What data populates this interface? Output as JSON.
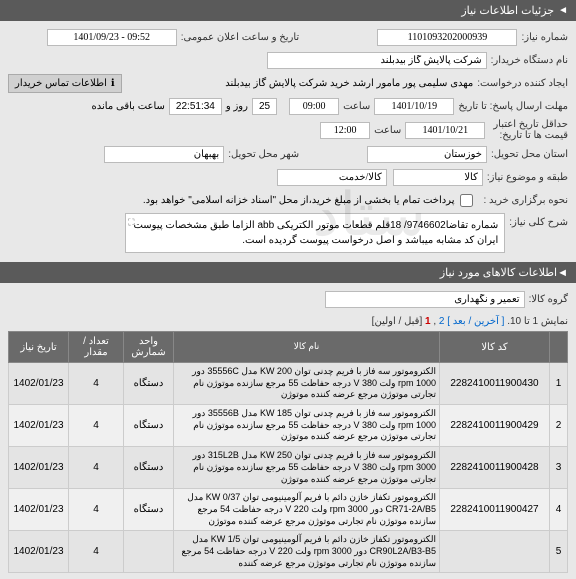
{
  "header": {
    "title": "جزئیات اطلاعات نیاز"
  },
  "form": {
    "need_number_label": "شماره نیاز:",
    "need_number": "1101093202000939",
    "announce_datetime_label": "تاریخ و ساعت اعلان عمومی:",
    "announce_datetime": "1401/09/23 - 09:52",
    "org_label": "نام دستگاه خریدار:",
    "org_value": "شرکت پالایش گاز بیدبلند",
    "requester_label": "ایجاد کننده درخواست:",
    "requester_value": "مهدی سلیمی پور مامور ارشد خرید شرکت پالایش گاز بیدبلند",
    "contact_button": "اطلاعات تماس خریدار",
    "deadline_label": "مهلت ارسال پاسخ: تا تاریخ",
    "deadline_date": "1401/10/19",
    "deadline_time_label": "ساعت",
    "deadline_time": "09:00",
    "countdown_days": "25",
    "countdown_days_label": "روز و",
    "countdown_time": "22:51:34",
    "countdown_remaining": "ساعت باقی مانده",
    "validity_min_label": "حداقل تاریخ اعتبار",
    "validity_min_sublabel": "قیمت ها تا تاریخ:",
    "validity_date": "1401/10/21",
    "validity_time_label": "ساعت",
    "validity_time": "12:00",
    "province_label": "استان محل تحویل:",
    "province_value": "خوزستان",
    "city_label": "شهر محل تحویل:",
    "city_value": "بهبهان",
    "class_subclass_label": "طبقه و موضوع نیاز:",
    "class_value": "کالا",
    "subclass_value": "کالا/خدمت",
    "delivery_style_label": "نحوه برگزاری خرید :",
    "delivery_checkbox_label": "پرداخت تمام یا بخشی از مبلغ خرید،از محل \"اسناد خزانه اسلامی\" خواهد بود.",
    "general_desc_label": "شرح کلی نیاز:",
    "general_desc": "شماره تقاضا9746602/ 18قلم قطعات موتور الکتریکی abb الزاما طبق مشخصات پیوست ایران کد مشابه میباشد و اصل درخواست پیوست گردیده است."
  },
  "items_section": {
    "title": "اطلاعات کالاهای مورد نیاز",
    "group_label": "گروه کالا:",
    "group_value": "تعمیر و نگهداری",
    "pagination_text": "نمایش 1 تا 10.",
    "pagination_prev": "[ آخرین / بعد ]",
    "pagination_pages": [
      "2",
      "1"
    ],
    "pagination_next": "[قبل / اولین]"
  },
  "table": {
    "headers": {
      "num": "",
      "code": "کد کالا",
      "name": "نام کالا",
      "unit": "واحد شمارش",
      "qty": "تعداد / مقدار",
      "date": "تاریخ نیاز"
    },
    "rows": [
      {
        "num": "1",
        "code": "2282410011900430",
        "name": "الکتروموتور سه فاز با فریم چدنی توان KW 200 مدل 35556C دور rpm 1000 ولت V 380 درجه حفاظت 55 مرجع سازنده موتوژن نام تجارتی موتوژن مرجع عرضه کننده موتوژن",
        "unit": "دستگاه",
        "qty": "4",
        "date": "1402/01/23"
      },
      {
        "num": "2",
        "code": "2282410011900429",
        "name": "الکتروموتور سه فاز با فریم چدنی توان KW 185 مدل 35556B دور rpm 1000 ولت V 380 درجه حفاظت 55 مرجع سازنده موتوژن نام تجارتی موتوژن مرجع عرضه کننده موتوژن",
        "unit": "دستگاه",
        "qty": "4",
        "date": "1402/01/23"
      },
      {
        "num": "3",
        "code": "2282410011900428",
        "name": "الکتروموتور سه فاز با فریم چدنی توان KW 250 مدل 315L2B دور rpm 3000 ولت V 380 درجه حفاظت 55 مرجع سازنده موتوژن نام تجارتی موتوژن مرجع عرضه کننده موتوژن",
        "unit": "دستگاه",
        "qty": "4",
        "date": "1402/01/23"
      },
      {
        "num": "4",
        "code": "2282410011900427",
        "name": "الکتروموتور تکفاز خازن دائم با فریم آلومینیومی توان KW 0/37 مدل CR71-2A/B5 دور rpm 3000 ولت V 220 درجه حفاظت 54 مرجع سازنده موتوژن نام تجارتی موتوژن مرجع عرضه کننده موتوژن",
        "unit": "دستگاه",
        "qty": "4",
        "date": "1402/01/23"
      },
      {
        "num": "5",
        "code": "",
        "name": "الکتروموتور تکفاز خازن دائم با فریم آلومینیومی توان KW 1/5 مدل CR90L2A/B3-B5 دور rpm 3000 ولت V 220 درجه حفاظت 54 مرجع سازنده موتوژن نام تجارتی موتوژن مرجع عرضه کننده",
        "unit": "",
        "qty": "4",
        "date": "1402/01/23"
      }
    ]
  }
}
